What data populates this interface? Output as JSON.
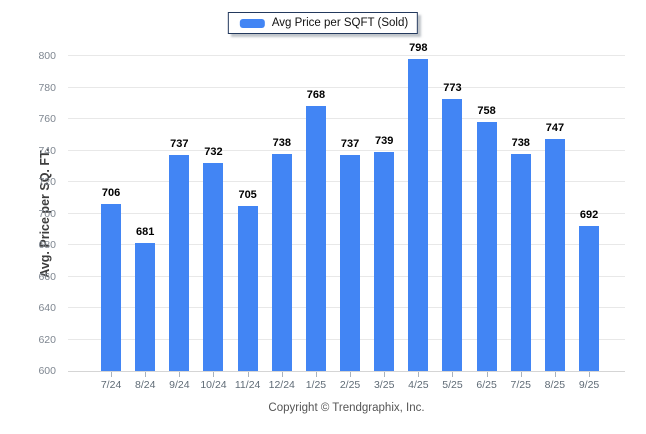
{
  "legend": {
    "label": "Avg Price per SQFT (Sold)",
    "swatch_color": "#4285f4",
    "border_color": "#23395d"
  },
  "footer": {
    "text": "Copyright © Trendgraphix, Inc."
  },
  "chart_data": {
    "type": "bar",
    "title": "",
    "series_name": "Avg Price per SQFT (Sold)",
    "categories": [
      "7/24",
      "8/24",
      "9/24",
      "10/24",
      "11/24",
      "12/24",
      "1/25",
      "2/25",
      "3/25",
      "4/25",
      "5/25",
      "6/25",
      "7/25",
      "8/25",
      "9/25"
    ],
    "values": [
      706,
      681,
      737,
      732,
      705,
      738,
      768,
      737,
      739,
      798,
      773,
      758,
      738,
      747,
      692
    ],
    "xlabel": "",
    "ylabel": "Avg. Price per SQ. FT.",
    "ylim": [
      600,
      800
    ],
    "yticks": [
      600,
      620,
      640,
      660,
      680,
      700,
      720,
      740,
      760,
      780,
      800
    ],
    "grid": "horizontal",
    "legend_position": "top-center",
    "bar_color": "#4285f4",
    "value_labels": true
  }
}
